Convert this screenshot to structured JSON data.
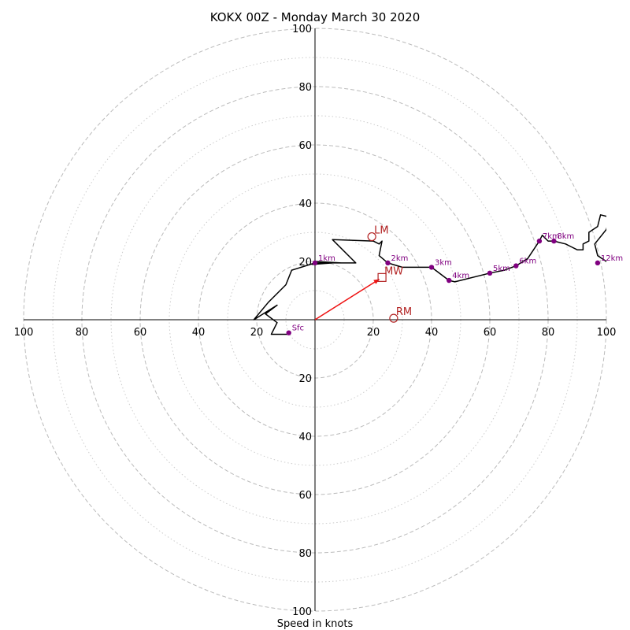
{
  "chart_data": {
    "type": "hodograph",
    "title": "KOKX 00Z - Monday March 30 2020",
    "xlabel": "Speed in knots",
    "units": "knots",
    "range": [
      -100,
      100
    ],
    "major_rings": [
      20,
      40,
      60,
      80,
      100
    ],
    "minor_rings": [
      10,
      30,
      50,
      70,
      90
    ],
    "tick_labels": [
      "100",
      "80",
      "60",
      "40",
      "20",
      "20",
      "40",
      "60",
      "80",
      "100"
    ],
    "y_tick_labels_up": [
      "20",
      "40",
      "60",
      "80",
      "100"
    ],
    "y_tick_labels_down": [
      "20",
      "40",
      "60",
      "80",
      "100"
    ],
    "colors": {
      "trace": "#000000",
      "height_marker": "#800080",
      "motion": "#b22222",
      "mean_wind": "#ee1111",
      "rings": "#bbbbbb"
    },
    "trace": [
      {
        "u": -9,
        "v": -5
      },
      {
        "u": -15,
        "v": -5
      },
      {
        "u": -13,
        "v": -1
      },
      {
        "u": -17,
        "v": 2
      },
      {
        "u": -13,
        "v": 5
      },
      {
        "u": -21,
        "v": 0
      },
      {
        "u": -16,
        "v": 6
      },
      {
        "u": -10,
        "v": 12
      },
      {
        "u": -8,
        "v": 17
      },
      {
        "u": 0,
        "v": 19.5
      },
      {
        "u": 9,
        "v": 19.5
      },
      {
        "u": 0,
        "v": 20
      },
      {
        "u": -1,
        "v": 19
      },
      {
        "u": 6,
        "v": 19.5
      },
      {
        "u": 14,
        "v": 19.5
      },
      {
        "u": 6,
        "v": 27.5
      },
      {
        "u": 20,
        "v": 27
      },
      {
        "u": 22,
        "v": 26
      },
      {
        "u": 23,
        "v": 27
      },
      {
        "u": 22,
        "v": 22
      },
      {
        "u": 25,
        "v": 19.5
      },
      {
        "u": 30,
        "v": 18
      },
      {
        "u": 40,
        "v": 18
      },
      {
        "u": 46,
        "v": 13.5
      },
      {
        "u": 48,
        "v": 13
      },
      {
        "u": 60,
        "v": 16
      },
      {
        "u": 65,
        "v": 17
      },
      {
        "u": 69,
        "v": 18.5
      },
      {
        "u": 73,
        "v": 21
      },
      {
        "u": 77,
        "v": 27
      },
      {
        "u": 78,
        "v": 29
      },
      {
        "u": 80,
        "v": 27
      },
      {
        "u": 82,
        "v": 27
      },
      {
        "u": 86,
        "v": 26
      },
      {
        "u": 88,
        "v": 25
      },
      {
        "u": 90,
        "v": 24
      },
      {
        "u": 92,
        "v": 24
      },
      {
        "u": 92,
        "v": 26
      },
      {
        "u": 94,
        "v": 27
      },
      {
        "u": 94,
        "v": 30
      },
      {
        "u": 97,
        "v": 32
      },
      {
        "u": 98,
        "v": 36
      },
      {
        "u": 100,
        "v": 35.5
      },
      {
        "u": 101,
        "v": 34.5
      },
      {
        "u": 100,
        "v": 31
      },
      {
        "u": 96,
        "v": 26
      },
      {
        "u": 97,
        "v": 22
      },
      {
        "u": 100,
        "v": 20
      },
      {
        "u": 101,
        "v": 19
      }
    ],
    "height_markers": [
      {
        "label": "Sfc",
        "u": -9,
        "v": -4.5
      },
      {
        "label": "1km",
        "u": 0,
        "v": 19.5
      },
      {
        "label": "2km",
        "u": 25,
        "v": 19.5
      },
      {
        "label": "3km",
        "u": 40,
        "v": 18
      },
      {
        "label": "4km",
        "u": 46,
        "v": 13.5
      },
      {
        "label": "5km",
        "u": 60,
        "v": 16
      },
      {
        "label": "6km",
        "u": 69,
        "v": 18.5
      },
      {
        "label": "7km",
        "u": 77,
        "v": 27
      },
      {
        "label": "8km",
        "u": 82,
        "v": 27
      },
      {
        "label": "12km",
        "u": 97,
        "v": 19.5
      }
    ],
    "storm_motion": [
      {
        "label": "LM",
        "u": 19.5,
        "v": 28.5
      },
      {
        "label": "RM",
        "u": 27,
        "v": 0.5
      }
    ],
    "mean_wind": {
      "label": "MW",
      "u": 23,
      "v": 14.5
    }
  }
}
